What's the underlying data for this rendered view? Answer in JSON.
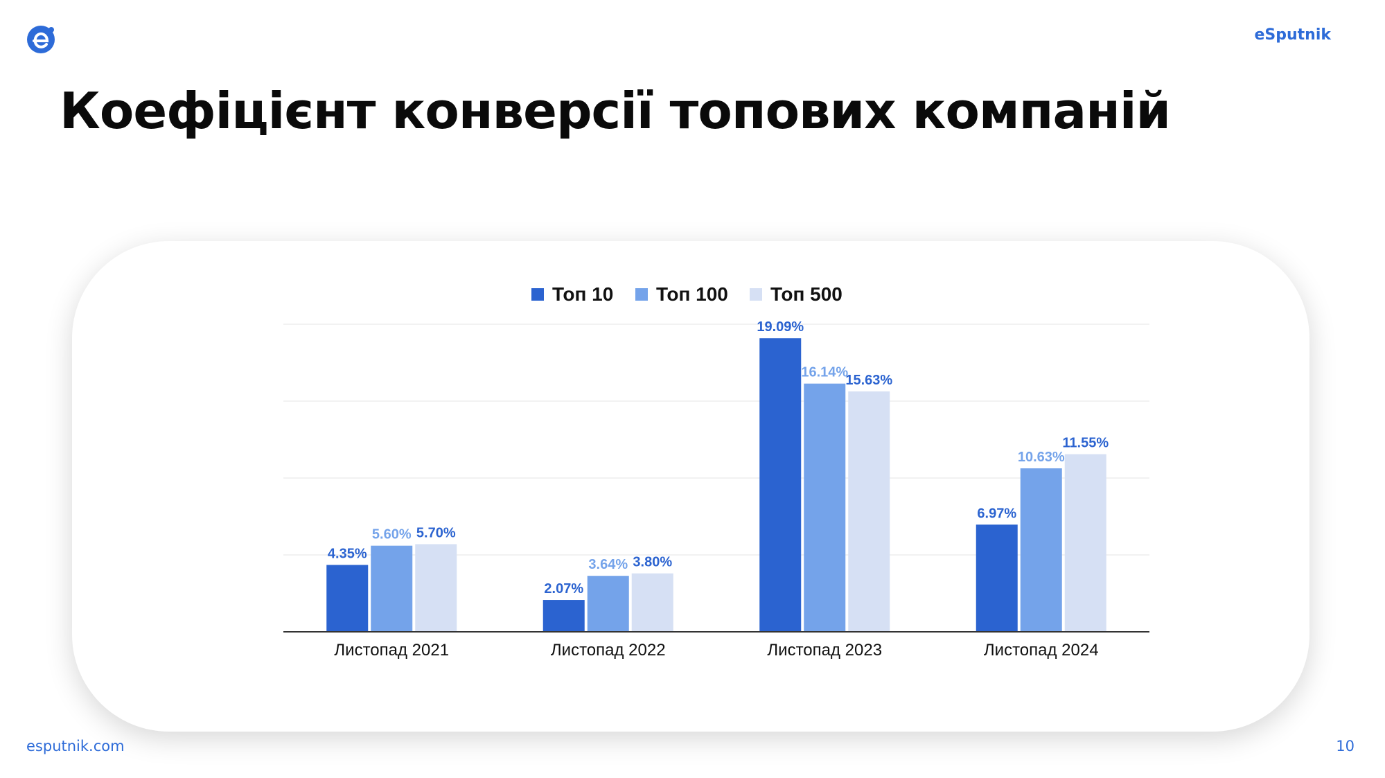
{
  "header": {
    "brand": "eSputnik",
    "title": "Коефіцієнт конверсії топових компаній"
  },
  "footer": {
    "url": "esputnik.com",
    "page": "10"
  },
  "colors": {
    "accent": "#2d6bd8",
    "series": [
      "#2b63d0",
      "#74a3ea",
      "#d6e0f4"
    ],
    "label_colors": [
      "#2b63d0",
      "#74a3ea",
      "#2b63d0"
    ]
  },
  "chart_data": {
    "type": "bar",
    "categories": [
      "Листопад 2021",
      "Листопад 2022",
      "Листопад 2023",
      "Листопад 2024"
    ],
    "series": [
      {
        "name": "Топ 10",
        "values": [
          4.35,
          2.07,
          19.09,
          6.97
        ],
        "labels": [
          "4.35%",
          "2.07%",
          "19.09%",
          "6.97%"
        ]
      },
      {
        "name": "Топ 100",
        "values": [
          5.6,
          3.64,
          16.14,
          10.63
        ],
        "labels": [
          "5.60%",
          "3.64%",
          "16.14%",
          "10.63%"
        ]
      },
      {
        "name": "Топ 500",
        "values": [
          5.7,
          3.8,
          15.63,
          11.55
        ],
        "labels": [
          "5.70%",
          "3.80%",
          "15.63%",
          "11.55%"
        ]
      }
    ],
    "ylim": [
      0,
      20
    ],
    "grid": true,
    "legend_position": "top-center"
  }
}
